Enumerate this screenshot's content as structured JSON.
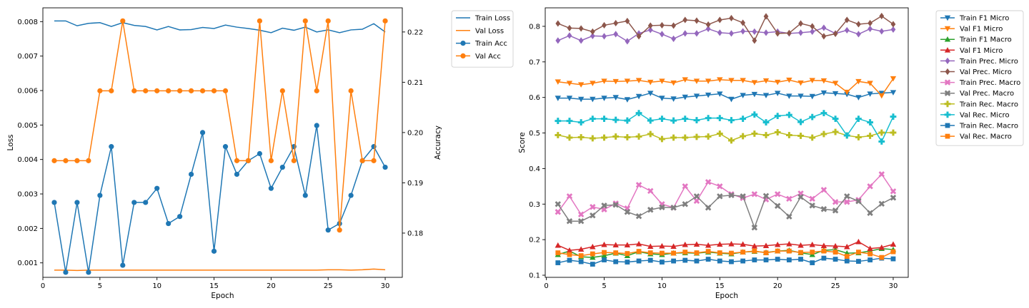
{
  "chart_data": [
    {
      "type": "line",
      "xlabel": "Epoch",
      "ylabel": "Loss",
      "y2label": "Accuracy",
      "xlim": [
        0,
        31.5
      ],
      "ylim": [
        0.00058,
        0.0084
      ],
      "y2lim": [
        0.1712,
        0.2248
      ],
      "xticks": [
        0,
        5,
        10,
        15,
        20,
        25,
        30
      ],
      "yticks": [
        0.001,
        0.002,
        0.003,
        0.004,
        0.005,
        0.006,
        0.007,
        0.008
      ],
      "y2ticks": [
        0.18,
        0.19,
        0.2,
        0.21,
        0.22
      ],
      "x": [
        1,
        2,
        3,
        4,
        5,
        6,
        7,
        8,
        9,
        10,
        11,
        12,
        13,
        14,
        15,
        16,
        17,
        18,
        19,
        20,
        21,
        22,
        23,
        24,
        25,
        26,
        27,
        28,
        29,
        30
      ],
      "legend_position": "outside-right-top",
      "series": [
        {
          "name": "Train Loss",
          "axis": "left",
          "color": "#1f77b4",
          "marker": "none",
          "values": [
            0.00802,
            0.00802,
            0.00788,
            0.00795,
            0.00797,
            0.00786,
            0.00797,
            0.00789,
            0.00786,
            0.00776,
            0.00786,
            0.00776,
            0.00777,
            0.00783,
            0.0078,
            0.0079,
            0.00784,
            0.0078,
            0.00775,
            0.00768,
            0.00781,
            0.00775,
            0.00784,
            0.0077,
            0.00776,
            0.00768,
            0.00776,
            0.00778,
            0.00794,
            0.0077
          ]
        },
        {
          "name": "Val Loss",
          "axis": "left",
          "color": "#ff7f0e",
          "marker": "none",
          "values": [
            0.00079,
            0.00079,
            0.00078,
            0.00079,
            0.00079,
            0.00079,
            0.00079,
            0.00079,
            0.00079,
            0.00079,
            0.00079,
            0.00079,
            0.00079,
            0.00079,
            0.00079,
            0.00079,
            0.00079,
            0.00079,
            0.00079,
            0.00079,
            0.00079,
            0.00079,
            0.00079,
            0.00079,
            0.0008,
            0.0008,
            0.00079,
            0.0008,
            0.00082,
            0.0008
          ]
        },
        {
          "name": "Train Acc",
          "axis": "right",
          "color": "#1f77b4",
          "marker": "circle",
          "values": [
            0.1861,
            0.1722,
            0.1861,
            0.1722,
            0.1875,
            0.1972,
            0.1736,
            0.1861,
            0.1861,
            0.1889,
            0.1819,
            0.1833,
            0.1917,
            0.2,
            0.1764,
            0.1972,
            0.1917,
            0.1944,
            0.1958,
            0.1889,
            0.1931,
            0.1972,
            0.1875,
            0.2014,
            0.1806,
            0.1819,
            0.1875,
            0.1944,
            0.1972,
            0.1931
          ]
        },
        {
          "name": "Val Acc",
          "axis": "right",
          "color": "#ff7f0e",
          "marker": "circle",
          "values": [
            0.1944,
            0.1944,
            0.1944,
            0.1944,
            0.2083,
            0.2083,
            0.2222,
            0.2083,
            0.2083,
            0.2083,
            0.2083,
            0.2083,
            0.2083,
            0.2083,
            0.2083,
            0.2083,
            0.1944,
            0.1944,
            0.2222,
            0.1944,
            0.2083,
            0.1944,
            0.2222,
            0.2083,
            0.2222,
            0.1806,
            0.2083,
            0.1944,
            0.1944,
            0.2222
          ]
        }
      ]
    },
    {
      "type": "line",
      "xlabel": "Epoch",
      "ylabel": "Score",
      "xlim": [
        -0.1,
        31.3
      ],
      "ylim": [
        0.094,
        0.852
      ],
      "xticks": [
        0,
        5,
        10,
        15,
        20,
        25,
        30
      ],
      "yticks": [
        0.1,
        0.2,
        0.3,
        0.4,
        0.5,
        0.6,
        0.7,
        0.8
      ],
      "x": [
        1,
        2,
        3,
        4,
        5,
        6,
        7,
        8,
        9,
        10,
        11,
        12,
        13,
        14,
        15,
        16,
        17,
        18,
        19,
        20,
        21,
        22,
        23,
        24,
        25,
        26,
        27,
        28,
        29,
        30
      ],
      "legend_position": "outside-right-top",
      "series": [
        {
          "name": "Train F1 Micro",
          "color": "#1f77b4",
          "marker": "triangle-down",
          "values": [
            0.598,
            0.598,
            0.595,
            0.595,
            0.598,
            0.6,
            0.594,
            0.603,
            0.612,
            0.598,
            0.596,
            0.601,
            0.604,
            0.607,
            0.61,
            0.595,
            0.606,
            0.609,
            0.606,
            0.612,
            0.604,
            0.604,
            0.603,
            0.613,
            0.611,
            0.609,
            0.6,
            0.61,
            0.612,
            0.614
          ]
        },
        {
          "name": "Val F1 Micro",
          "color": "#ff7f0e",
          "marker": "triangle-down",
          "values": [
            0.644,
            0.64,
            0.636,
            0.64,
            0.646,
            0.645,
            0.646,
            0.648,
            0.643,
            0.646,
            0.641,
            0.65,
            0.646,
            0.646,
            0.65,
            0.648,
            0.648,
            0.642,
            0.647,
            0.643,
            0.649,
            0.641,
            0.648,
            0.647,
            0.64,
            0.615,
            0.645,
            0.64,
            0.605,
            0.653
          ]
        },
        {
          "name": "Train F1 Macro",
          "color": "#2ca02c",
          "marker": "triangle-up",
          "values": [
            0.158,
            0.168,
            0.152,
            0.15,
            0.155,
            0.162,
            0.155,
            0.166,
            0.16,
            0.158,
            0.162,
            0.163,
            0.162,
            0.165,
            0.162,
            0.16,
            0.165,
            0.167,
            0.164,
            0.168,
            0.17,
            0.163,
            0.158,
            0.17,
            0.172,
            0.162,
            0.163,
            0.168,
            0.175,
            0.172
          ]
        },
        {
          "name": "Val F1 Micro",
          "color": "#d62728",
          "marker": "triangle-up",
          "values": [
            0.184,
            0.17,
            0.173,
            0.18,
            0.186,
            0.185,
            0.185,
            0.188,
            0.181,
            0.182,
            0.181,
            0.186,
            0.187,
            0.184,
            0.187,
            0.188,
            0.187,
            0.182,
            0.183,
            0.186,
            0.188,
            0.184,
            0.186,
            0.183,
            0.182,
            0.18,
            0.194,
            0.175,
            0.178,
            0.187
          ]
        },
        {
          "name": "Train Prec. Micro",
          "color": "#9467bd",
          "marker": "diamond",
          "values": [
            0.76,
            0.774,
            0.76,
            0.773,
            0.772,
            0.778,
            0.758,
            0.78,
            0.79,
            0.778,
            0.765,
            0.78,
            0.78,
            0.793,
            0.782,
            0.78,
            0.786,
            0.785,
            0.782,
            0.785,
            0.78,
            0.782,
            0.785,
            0.796,
            0.78,
            0.789,
            0.778,
            0.793,
            0.786,
            0.791
          ]
        },
        {
          "name": "Val Prec. Micro",
          "color": "#8c564b",
          "marker": "diamond",
          "values": [
            0.808,
            0.795,
            0.794,
            0.785,
            0.803,
            0.809,
            0.815,
            0.772,
            0.802,
            0.803,
            0.802,
            0.818,
            0.816,
            0.805,
            0.818,
            0.823,
            0.81,
            0.76,
            0.828,
            0.78,
            0.781,
            0.808,
            0.8,
            0.772,
            0.779,
            0.818,
            0.806,
            0.809,
            0.829,
            0.806
          ]
        },
        {
          "name": "Train Prec. Macro",
          "color": "#e377c2",
          "marker": "x-filled",
          "values": [
            0.278,
            0.322,
            0.271,
            0.292,
            0.285,
            0.302,
            0.288,
            0.354,
            0.337,
            0.3,
            0.29,
            0.35,
            0.309,
            0.362,
            0.35,
            0.328,
            0.317,
            0.328,
            0.313,
            0.328,
            0.315,
            0.33,
            0.315,
            0.34,
            0.306,
            0.306,
            0.312,
            0.35,
            0.384,
            0.336
          ]
        },
        {
          "name": "Val Prec. Macro",
          "color": "#7f7f7f",
          "marker": "x-filled",
          "values": [
            0.3,
            0.252,
            0.252,
            0.268,
            0.296,
            0.298,
            0.278,
            0.266,
            0.284,
            0.291,
            0.29,
            0.3,
            0.322,
            0.29,
            0.322,
            0.325,
            0.322,
            0.234,
            0.323,
            0.295,
            0.265,
            0.32,
            0.296,
            0.286,
            0.282,
            0.322,
            0.308,
            0.275,
            0.301,
            0.318
          ]
        },
        {
          "name": "Train Rec. Macro",
          "color": "#bcbd22",
          "marker": "plus-filled",
          "values": [
            0.494,
            0.487,
            0.488,
            0.485,
            0.487,
            0.49,
            0.488,
            0.49,
            0.497,
            0.483,
            0.487,
            0.487,
            0.489,
            0.49,
            0.498,
            0.479,
            0.491,
            0.498,
            0.494,
            0.502,
            0.494,
            0.492,
            0.487,
            0.497,
            0.503,
            0.493,
            0.488,
            0.492,
            0.501,
            0.501
          ]
        },
        {
          "name": "Val Rec. Micro",
          "color": "#17becf",
          "marker": "plus-filled",
          "values": [
            0.534,
            0.534,
            0.53,
            0.54,
            0.54,
            0.537,
            0.535,
            0.556,
            0.535,
            0.54,
            0.535,
            0.54,
            0.536,
            0.542,
            0.542,
            0.536,
            0.54,
            0.552,
            0.53,
            0.548,
            0.551,
            0.531,
            0.545,
            0.556,
            0.54,
            0.493,
            0.54,
            0.53,
            0.476,
            0.546
          ]
        },
        {
          "name": "Train Rec. Macro",
          "color": "#1f77b4",
          "marker": "square",
          "values": [
            0.135,
            0.142,
            0.138,
            0.131,
            0.143,
            0.138,
            0.137,
            0.14,
            0.142,
            0.137,
            0.14,
            0.142,
            0.14,
            0.145,
            0.14,
            0.138,
            0.14,
            0.143,
            0.143,
            0.145,
            0.143,
            0.145,
            0.135,
            0.148,
            0.145,
            0.14,
            0.139,
            0.143,
            0.148,
            0.146
          ]
        },
        {
          "name": "Val Rec. Macro",
          "color": "#ff7f0e",
          "marker": "square",
          "values": [
            0.163,
            0.158,
            0.155,
            0.16,
            0.164,
            0.163,
            0.161,
            0.167,
            0.163,
            0.162,
            0.162,
            0.165,
            0.163,
            0.167,
            0.163,
            0.162,
            0.165,
            0.168,
            0.163,
            0.168,
            0.168,
            0.164,
            0.165,
            0.168,
            0.165,
            0.153,
            0.165,
            0.16,
            0.15,
            0.166
          ]
        }
      ]
    }
  ]
}
